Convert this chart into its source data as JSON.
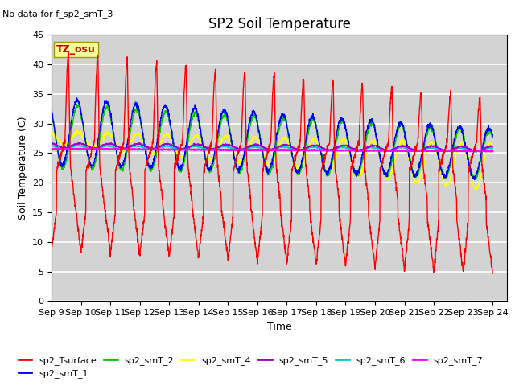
{
  "title": "SP2 Soil Temperature",
  "subtitle": "No data for f_sp2_smT_3",
  "xlabel": "Time",
  "ylabel": "Soil Temperature (C)",
  "tz_label": "TZ_osu",
  "ylim": [
    0,
    45
  ],
  "series_colors": {
    "sp2_Tsurface": "#FF0000",
    "sp2_smT_1": "#0000FF",
    "sp2_smT_2": "#00CC00",
    "sp2_smT_4": "#FFFF00",
    "sp2_smT_5": "#9900CC",
    "sp2_smT_6": "#00CCCC",
    "sp2_smT_7": "#FF00FF"
  },
  "x_tick_labels": [
    "Sep 9",
    "Sep 10",
    "Sep 11",
    "Sep 12",
    "Sep 13",
    "Sep 14",
    "Sep 15",
    "Sep 16",
    "Sep 17",
    "Sep 18",
    "Sep 19",
    "Sep 20",
    "Sep 21",
    "Sep 22",
    "Sep 23",
    "Sep 24"
  ],
  "yticks": [
    0,
    5,
    10,
    15,
    20,
    25,
    30,
    35,
    40,
    45
  ],
  "title_fontsize": 12,
  "label_fontsize": 9,
  "tick_fontsize": 8,
  "legend_fontsize": 8
}
